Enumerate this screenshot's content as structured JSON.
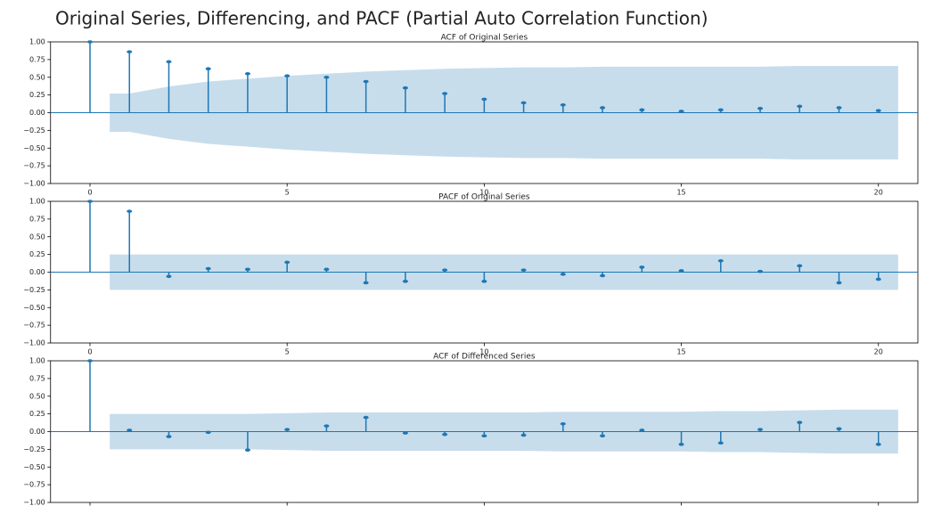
{
  "heading": "Original Series, Differencing, and PACF (Partial Auto Correlation Function)",
  "chart_data": [
    {
      "type": "stem",
      "title": "ACF of Original Series",
      "color": "#1f77b4",
      "x": [
        0,
        1,
        2,
        3,
        4,
        5,
        6,
        7,
        8,
        9,
        10,
        11,
        12,
        13,
        14,
        15,
        16,
        17,
        18,
        19,
        20
      ],
      "values": [
        1.0,
        0.86,
        0.72,
        0.62,
        0.55,
        0.52,
        0.5,
        0.44,
        0.35,
        0.27,
        0.19,
        0.14,
        0.11,
        0.07,
        0.04,
        0.02,
        0.04,
        0.06,
        0.09,
        0.07,
        0.03
      ],
      "confint": [
        null,
        0.27,
        0.37,
        0.44,
        0.48,
        0.52,
        0.55,
        0.58,
        0.6,
        0.62,
        0.63,
        0.64,
        0.64,
        0.65,
        0.65,
        0.65,
        0.65,
        0.65,
        0.66,
        0.66,
        0.66
      ],
      "xlim": [
        -1,
        21
      ],
      "xticks": [
        0,
        5,
        10,
        15,
        20
      ],
      "ylim": [
        -1,
        1
      ],
      "yticks": [
        {
          "value": -1,
          "label": "−1.00"
        },
        {
          "value": -0.75,
          "label": "−0.75"
        },
        {
          "value": -0.5,
          "label": "−0.50"
        },
        {
          "value": -0.25,
          "label": "−0.25"
        },
        {
          "value": 0,
          "label": "0.00"
        },
        {
          "value": 0.25,
          "label": "0.25"
        },
        {
          "value": 0.5,
          "label": "0.50"
        },
        {
          "value": 0.75,
          "label": "0.75"
        },
        {
          "value": 1,
          "label": "1.00"
        }
      ]
    },
    {
      "type": "stem",
      "title": "PACF of Original Series",
      "color": "#1f77b4",
      "x": [
        0,
        1,
        2,
        3,
        4,
        5,
        6,
        7,
        8,
        9,
        10,
        11,
        12,
        13,
        14,
        15,
        16,
        17,
        18,
        19,
        20
      ],
      "values": [
        1.0,
        0.86,
        -0.06,
        0.05,
        0.04,
        0.14,
        0.04,
        -0.15,
        -0.13,
        0.03,
        -0.13,
        0.03,
        -0.03,
        -0.05,
        0.07,
        0.02,
        0.16,
        0.01,
        0.09,
        -0.15,
        -0.1
      ],
      "confint": [
        null,
        0.25,
        0.25,
        0.25,
        0.25,
        0.25,
        0.25,
        0.25,
        0.25,
        0.25,
        0.25,
        0.25,
        0.25,
        0.25,
        0.25,
        0.25,
        0.25,
        0.25,
        0.25,
        0.25,
        0.25
      ],
      "xlim": [
        -1,
        21
      ],
      "xticks": [
        0,
        5,
        10,
        15,
        20
      ],
      "ylim": [
        -1,
        1
      ],
      "yticks": [
        {
          "value": -1,
          "label": "−1.00"
        },
        {
          "value": -0.75,
          "label": "−0.75"
        },
        {
          "value": -0.5,
          "label": "−0.50"
        },
        {
          "value": -0.25,
          "label": "−0.25"
        },
        {
          "value": 0,
          "label": "0.00"
        },
        {
          "value": 0.25,
          "label": "0.25"
        },
        {
          "value": 0.5,
          "label": "0.50"
        },
        {
          "value": 0.75,
          "label": "0.75"
        },
        {
          "value": 1,
          "label": "1.00"
        }
      ]
    },
    {
      "type": "stem",
      "title": "ACF of Differenced Series",
      "color": "#1f77b4",
      "x": [
        0,
        1,
        2,
        3,
        4,
        5,
        6,
        7,
        8,
        9,
        10,
        11,
        12,
        13,
        14,
        15,
        16,
        17,
        18,
        19,
        20
      ],
      "values": [
        1.0,
        0.02,
        -0.07,
        -0.01,
        -0.26,
        0.03,
        0.08,
        0.2,
        -0.02,
        -0.04,
        -0.06,
        -0.05,
        0.11,
        -0.06,
        0.02,
        -0.18,
        -0.16,
        0.03,
        0.13,
        0.04,
        -0.18
      ],
      "confint": [
        null,
        0.25,
        0.25,
        0.25,
        0.25,
        0.26,
        0.27,
        0.27,
        0.27,
        0.27,
        0.27,
        0.27,
        0.28,
        0.28,
        0.28,
        0.28,
        0.29,
        0.29,
        0.3,
        0.31,
        0.31
      ],
      "xlim": [
        -1,
        21
      ],
      "xticks": [
        0,
        5,
        10,
        15,
        20
      ],
      "ylim": [
        -1,
        1
      ],
      "yticks": [
        {
          "value": -1,
          "label": "−1.00"
        },
        {
          "value": -0.75,
          "label": "−0.75"
        },
        {
          "value": -0.5,
          "label": "−0.50"
        },
        {
          "value": -0.25,
          "label": "−0.25"
        },
        {
          "value": 0,
          "label": "0.00"
        },
        {
          "value": 0.25,
          "label": "0.25"
        },
        {
          "value": 0.5,
          "label": "0.50"
        },
        {
          "value": 0.75,
          "label": "0.75"
        },
        {
          "value": 1,
          "label": "1.00"
        }
      ]
    }
  ]
}
